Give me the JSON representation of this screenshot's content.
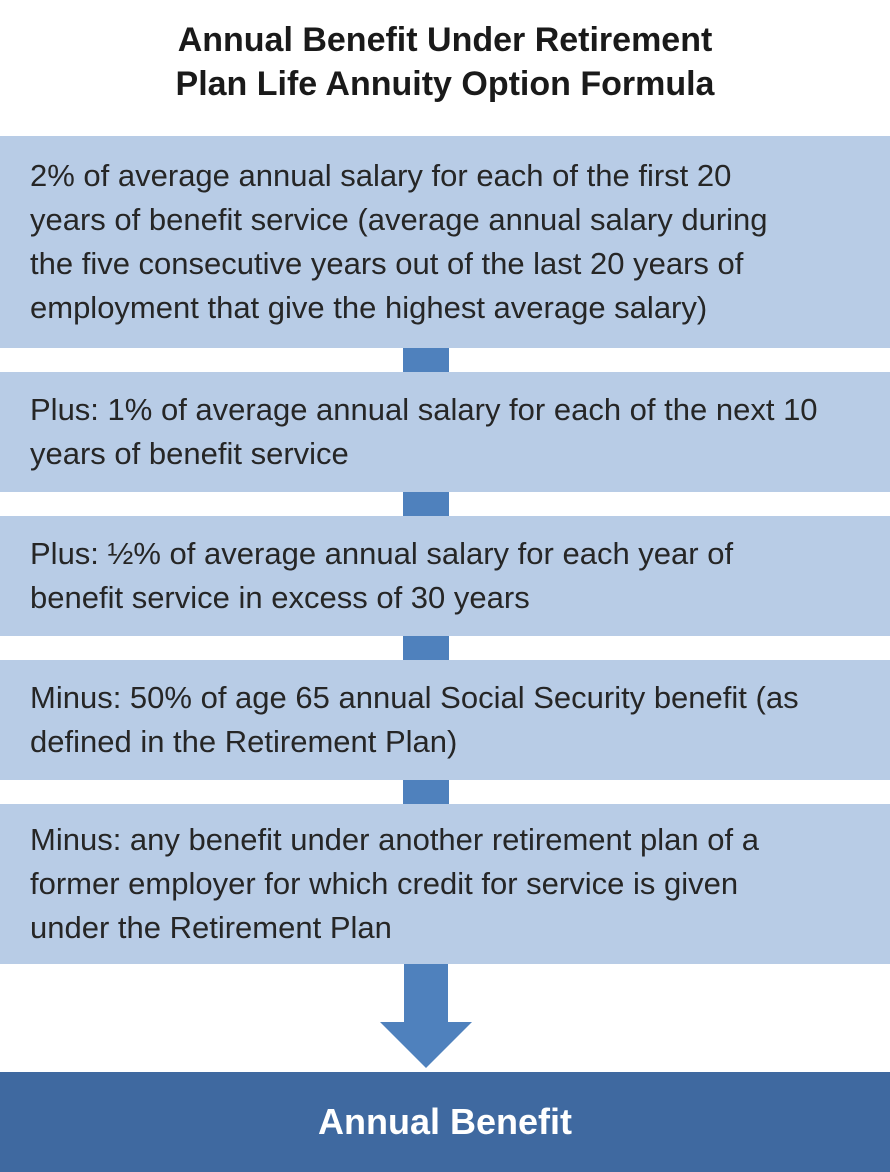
{
  "title": {
    "line1": "Annual Benefit Under Retirement",
    "line2": "Plan Life Annuity Option Formula"
  },
  "steps": [
    {
      "lines": [
        "2% of average annual salary for each of the first 20",
        "years of benefit service (average annual salary during",
        "the five consecutive years out of the last 20 years of",
        "employment that give the highest average salary)"
      ]
    },
    {
      "lines": [
        "Plus: 1% of average annual salary for each of the next 10",
        "years of benefit service"
      ]
    },
    {
      "lines": [
        "Plus: ½% of average annual salary for each year of",
        "benefit service in excess of 30 years"
      ]
    },
    {
      "lines": [
        "Minus: 50% of age 65 annual Social Security benefit (as",
        "defined in the Retirement Plan)"
      ]
    },
    {
      "lines": [
        "Minus: any benefit under another retirement plan of a",
        "former employer for which credit for service is given",
        "under the Retirement Plan"
      ]
    }
  ],
  "result": {
    "label": "Annual Benefit"
  },
  "colors": {
    "step_fill": "#b8cce6",
    "connector": "#4f81bd",
    "arrow": "#4f81bd",
    "result_fill": "#3f69a0",
    "result_text": "#ffffff"
  }
}
